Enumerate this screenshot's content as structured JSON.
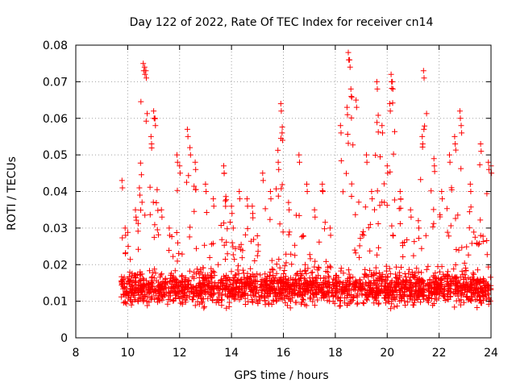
{
  "chart_data": {
    "type": "scatter",
    "title": "Day 122 of 2022, Rate Of TEC Index for receiver cn14",
    "xlabel": "GPS time / hours",
    "ylabel": "ROTI / TECUs",
    "xlim": [
      8,
      24
    ],
    "ylim": [
      0,
      0.08
    ],
    "xticks": [
      8,
      10,
      12,
      14,
      16,
      18,
      20,
      22,
      24
    ],
    "yticks": [
      0,
      0.01,
      0.02,
      0.03,
      0.04,
      0.05,
      0.06,
      0.07,
      0.08
    ],
    "xtick_labels": [
      "8",
      "10",
      "12",
      "14",
      "16",
      "18",
      "20",
      "22",
      "24"
    ],
    "ytick_labels": [
      "0",
      "0.01",
      "0.02",
      "0.03",
      "0.04",
      "0.05",
      "0.06",
      "0.07",
      "0.08"
    ],
    "grid": true,
    "marker": "+",
    "color": "#ff0000",
    "series": [
      {
        "name": "ROTI",
        "x_start": 9.75,
        "x_end": 24.0,
        "typical_range": [
          0.005,
          0.03
        ],
        "envelope_peaks": [
          [
            9.78,
            0.043
          ],
          [
            9.9,
            0.03
          ],
          [
            10.3,
            0.035
          ],
          [
            10.45,
            0.041
          ],
          [
            10.6,
            0.075
          ],
          [
            10.65,
            0.074
          ],
          [
            10.7,
            0.073
          ],
          [
            10.9,
            0.055
          ],
          [
            11.0,
            0.062
          ],
          [
            11.05,
            0.06
          ],
          [
            11.3,
            0.035
          ],
          [
            11.6,
            0.03
          ],
          [
            11.9,
            0.05
          ],
          [
            12.0,
            0.047
          ],
          [
            12.3,
            0.057
          ],
          [
            12.4,
            0.052
          ],
          [
            12.6,
            0.048
          ],
          [
            13.0,
            0.042
          ],
          [
            13.3,
            0.038
          ],
          [
            13.7,
            0.047
          ],
          [
            14.0,
            0.036
          ],
          [
            14.3,
            0.04
          ],
          [
            14.6,
            0.038
          ],
          [
            14.8,
            0.036
          ],
          [
            15.2,
            0.045
          ],
          [
            15.5,
            0.04
          ],
          [
            15.8,
            0.048
          ],
          [
            15.9,
            0.064
          ],
          [
            15.95,
            0.056
          ],
          [
            16.2,
            0.037
          ],
          [
            16.6,
            0.05
          ],
          [
            16.9,
            0.042
          ],
          [
            17.2,
            0.035
          ],
          [
            17.5,
            0.042
          ],
          [
            17.8,
            0.03
          ],
          [
            18.2,
            0.058
          ],
          [
            18.45,
            0.063
          ],
          [
            18.5,
            0.078
          ],
          [
            18.55,
            0.076
          ],
          [
            18.6,
            0.068
          ],
          [
            18.8,
            0.065
          ],
          [
            19.2,
            0.05
          ],
          [
            19.4,
            0.04
          ],
          [
            19.6,
            0.07
          ],
          [
            19.8,
            0.058
          ],
          [
            20.0,
            0.047
          ],
          [
            20.1,
            0.064
          ],
          [
            20.15,
            0.072
          ],
          [
            20.2,
            0.07
          ],
          [
            20.5,
            0.04
          ],
          [
            20.9,
            0.035
          ],
          [
            21.2,
            0.032
          ],
          [
            21.35,
            0.055
          ],
          [
            21.4,
            0.073
          ],
          [
            21.8,
            0.049
          ],
          [
            22.1,
            0.04
          ],
          [
            22.4,
            0.05
          ],
          [
            22.6,
            0.055
          ],
          [
            22.8,
            0.062
          ],
          [
            22.85,
            0.058
          ],
          [
            23.2,
            0.042
          ],
          [
            23.6,
            0.053
          ],
          [
            23.9,
            0.048
          ],
          [
            24.0,
            0.047
          ]
        ]
      }
    ]
  }
}
